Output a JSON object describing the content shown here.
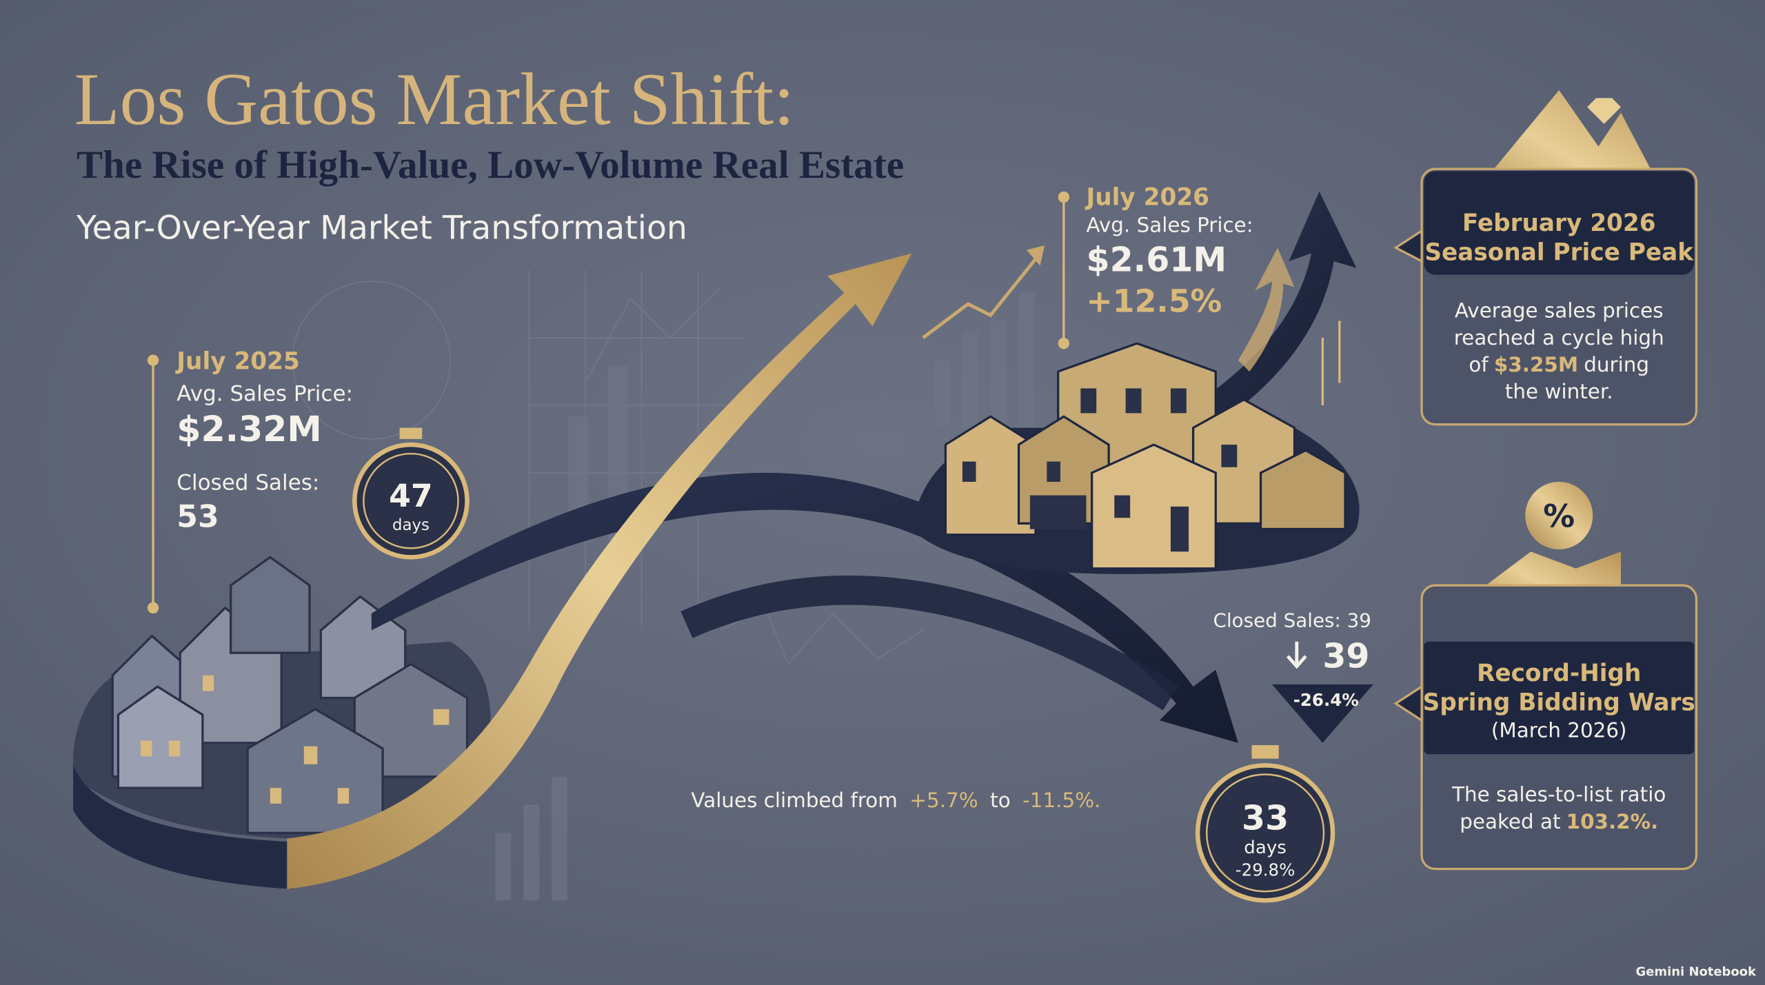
{
  "header": {
    "title": "Los Gatos Market Shift:",
    "subtitle": "The Rise of High-Value, Low-Volume Real Estate",
    "tagline": "Year-Over-Year Market Transformation"
  },
  "july_2025": {
    "label": "July 2025",
    "price_label": "Avg. Sales Price:",
    "price": "$2.32M",
    "sales_label": "Closed Sales:",
    "sales": "53",
    "days": "47",
    "days_unit": "days"
  },
  "july_2026": {
    "label": "July 2026",
    "price_label": "Avg. Sales Price:",
    "price": "$2.61M",
    "price_change": "+12.5%",
    "sales_label": "Closed Sales: 39",
    "sales": "39",
    "sales_change": "-26.4%",
    "days": "33",
    "days_unit": "days",
    "days_change": "-29.8%"
  },
  "note": {
    "prefix": "Values climbed from",
    "from": "+5.7%",
    "middle": "to",
    "to": "-11.5%."
  },
  "cards": [
    {
      "title_1": "February 2026",
      "title_2": "Seasonal Price Peak",
      "body": [
        [
          "Average sales prices"
        ],
        [
          "reached a cycle high"
        ],
        [
          "of",
          "$3.25M",
          "during"
        ],
        [
          "the winter."
        ]
      ]
    },
    {
      "icon": "%",
      "title_1": "Record-High",
      "title_2": "Spring Bidding Wars",
      "title_3": "(March 2026)",
      "body": [
        [
          "The sales-to-list ratio"
        ],
        [
          "peaked at",
          "103.2%."
        ]
      ]
    }
  ],
  "footer": "Gemini Notebook"
}
